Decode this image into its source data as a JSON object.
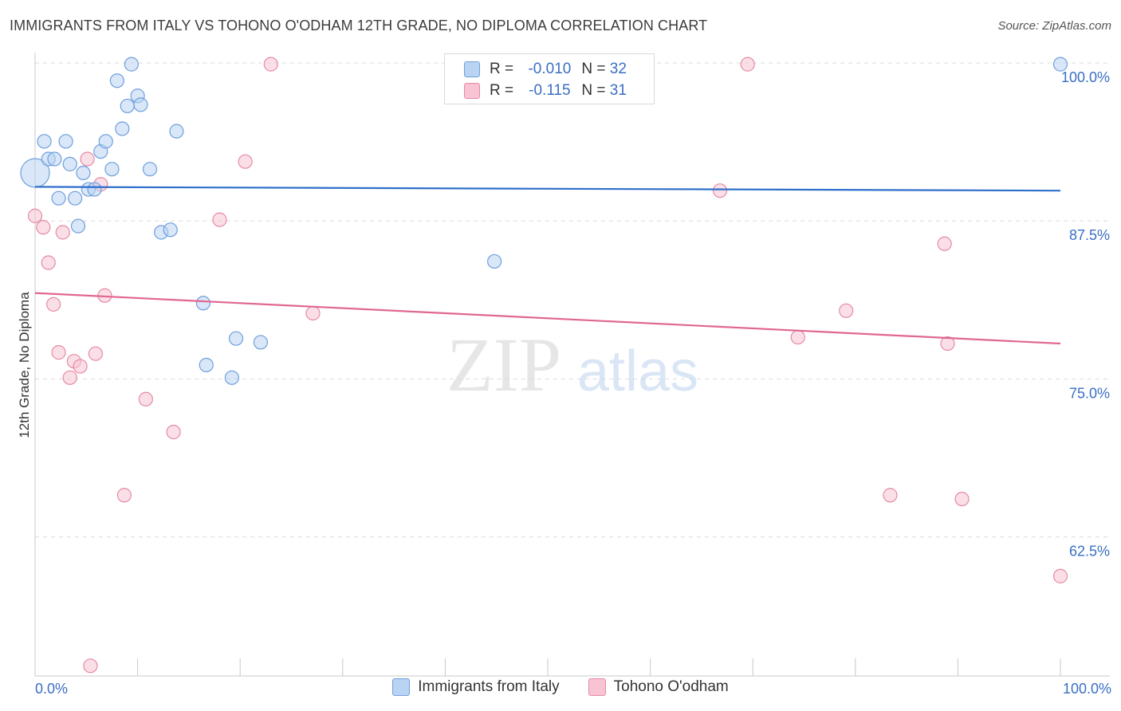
{
  "title": "IMMIGRANTS FROM ITALY VS TOHONO O'ODHAM 12TH GRADE, NO DIPLOMA CORRELATION CHART",
  "source": "Source: ZipAtlas.com",
  "legend_stats": [
    {
      "r_label": "R =",
      "r_value": "-0.010",
      "n_label": "N =",
      "n_value": "32"
    },
    {
      "r_label": "R =",
      "r_value": "-0.115",
      "n_label": "N =",
      "n_value": "31"
    }
  ],
  "colors": {
    "series1_fill": "#b9d3f3",
    "series1_stroke": "#6f9fdc",
    "series1_line": "#2f6fcb",
    "series2_fill": "#f8c4d4",
    "series2_stroke": "#e58aa6",
    "series2_line": "#e06790",
    "tick_label": "#3a6fc4",
    "grid": "#dcdcdc"
  },
  "chart_data": {
    "type": "scatter",
    "title": "IMMIGRANTS FROM ITALY VS TOHONO O'ODHAM 12TH GRADE, NO DIPLOMA CORRELATION CHART",
    "xlabel": "",
    "ylabel": "12th Grade, No Diploma",
    "xlim": [
      0,
      100
    ],
    "ylim": [
      51.5,
      101.2
    ],
    "x_tick_labels": [
      "0.0%",
      "100.0%"
    ],
    "y_ticks": [
      {
        "value": 100.0,
        "label": "100.0%"
      },
      {
        "value": 87.5,
        "label": "87.5%"
      },
      {
        "value": 75.0,
        "label": "75.0%"
      },
      {
        "value": 62.5,
        "label": "62.5%"
      }
    ],
    "grid": "horizontal dashed",
    "watermark": {
      "part1": "ZIP",
      "part2": "atlas"
    },
    "series": [
      {
        "name": "Immigrants from Italy",
        "trend": {
          "x": [
            0,
            100
          ],
          "y": [
            90.2,
            89.9
          ]
        },
        "points": [
          {
            "x": 0.0,
            "y": 91.3,
            "size": "large"
          },
          {
            "x": 0.9,
            "y": 93.8
          },
          {
            "x": 1.3,
            "y": 92.4
          },
          {
            "x": 1.9,
            "y": 92.4
          },
          {
            "x": 2.3,
            "y": 89.3
          },
          {
            "x": 3.0,
            "y": 93.8
          },
          {
            "x": 3.4,
            "y": 92.0
          },
          {
            "x": 3.9,
            "y": 89.3
          },
          {
            "x": 4.2,
            "y": 87.1
          },
          {
            "x": 4.7,
            "y": 91.3
          },
          {
            "x": 5.2,
            "y": 90.0
          },
          {
            "x": 5.8,
            "y": 90.0
          },
          {
            "x": 6.4,
            "y": 93.0
          },
          {
            "x": 6.9,
            "y": 93.8
          },
          {
            "x": 7.5,
            "y": 91.6
          },
          {
            "x": 8.0,
            "y": 98.6
          },
          {
            "x": 8.5,
            "y": 94.8
          },
          {
            "x": 9.0,
            "y": 96.6
          },
          {
            "x": 9.4,
            "y": 99.9
          },
          {
            "x": 10.0,
            "y": 97.4
          },
          {
            "x": 10.3,
            "y": 96.7
          },
          {
            "x": 11.2,
            "y": 91.6
          },
          {
            "x": 12.3,
            "y": 86.6
          },
          {
            "x": 13.2,
            "y": 86.8
          },
          {
            "x": 13.8,
            "y": 94.6
          },
          {
            "x": 16.4,
            "y": 81.0
          },
          {
            "x": 16.7,
            "y": 76.1
          },
          {
            "x": 19.2,
            "y": 75.1
          },
          {
            "x": 19.6,
            "y": 78.2
          },
          {
            "x": 22.0,
            "y": 77.9
          },
          {
            "x": 44.8,
            "y": 84.3
          },
          {
            "x": 100.0,
            "y": 99.9
          }
        ]
      },
      {
        "name": "Tohono O'odham",
        "trend": {
          "x": [
            0,
            100
          ],
          "y": [
            81.8,
            77.8
          ]
        },
        "points": [
          {
            "x": 0.0,
            "y": 87.9
          },
          {
            "x": 0.8,
            "y": 87.0
          },
          {
            "x": 1.3,
            "y": 84.2
          },
          {
            "x": 1.8,
            "y": 80.9
          },
          {
            "x": 2.3,
            "y": 77.1
          },
          {
            "x": 2.7,
            "y": 86.6
          },
          {
            "x": 3.4,
            "y": 75.1
          },
          {
            "x": 3.8,
            "y": 76.4
          },
          {
            "x": 4.4,
            "y": 76.0
          },
          {
            "x": 5.1,
            "y": 92.4
          },
          {
            "x": 5.4,
            "y": 52.3
          },
          {
            "x": 5.9,
            "y": 77.0
          },
          {
            "x": 6.4,
            "y": 90.4
          },
          {
            "x": 6.8,
            "y": 81.6
          },
          {
            "x": 8.7,
            "y": 65.8
          },
          {
            "x": 10.8,
            "y": 73.4
          },
          {
            "x": 13.5,
            "y": 70.8
          },
          {
            "x": 18.0,
            "y": 87.6
          },
          {
            "x": 20.5,
            "y": 92.2
          },
          {
            "x": 23.0,
            "y": 99.9
          },
          {
            "x": 27.1,
            "y": 80.2
          },
          {
            "x": 47.0,
            "y": 99.9
          },
          {
            "x": 66.8,
            "y": 89.9
          },
          {
            "x": 69.5,
            "y": 99.9
          },
          {
            "x": 74.4,
            "y": 78.3
          },
          {
            "x": 79.1,
            "y": 80.4
          },
          {
            "x": 83.4,
            "y": 65.8
          },
          {
            "x": 88.7,
            "y": 85.7
          },
          {
            "x": 89.0,
            "y": 77.8
          },
          {
            "x": 90.4,
            "y": 65.5
          },
          {
            "x": 100.0,
            "y": 59.4
          }
        ]
      }
    ]
  }
}
